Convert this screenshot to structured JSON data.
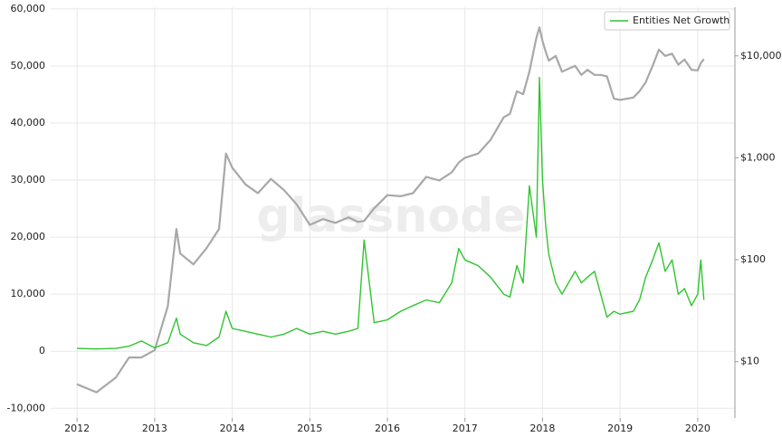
{
  "chart_data": {
    "type": "line",
    "watermark": "glassnode",
    "x": [
      2012.0,
      2012.25,
      2012.5,
      2012.67,
      2012.83,
      2013.0,
      2013.17,
      2013.28,
      2013.33,
      2013.5,
      2013.67,
      2013.83,
      2013.92,
      2014.0,
      2014.17,
      2014.33,
      2014.5,
      2014.67,
      2014.83,
      2015.0,
      2015.17,
      2015.33,
      2015.5,
      2015.62,
      2015.7,
      2015.83,
      2016.0,
      2016.17,
      2016.33,
      2016.5,
      2016.67,
      2016.83,
      2016.92,
      2017.0,
      2017.17,
      2017.33,
      2017.5,
      2017.58,
      2017.67,
      2017.75,
      2017.83,
      2017.92,
      2017.96,
      2018.0,
      2018.04,
      2018.08,
      2018.17,
      2018.25,
      2018.42,
      2018.5,
      2018.58,
      2018.67,
      2018.75,
      2018.83,
      2018.92,
      2019.0,
      2019.17,
      2019.25,
      2019.33,
      2019.42,
      2019.5,
      2019.58,
      2019.67,
      2019.75,
      2019.83,
      2019.92,
      2020.0,
      2020.04,
      2020.08
    ],
    "series": [
      {
        "color": "#a8a8a8",
        "axis": "y2",
        "values": [
          6,
          5,
          7,
          11,
          11,
          13,
          35,
          200,
          115,
          90,
          130,
          200,
          1100,
          800,
          550,
          450,
          620,
          480,
          350,
          220,
          250,
          230,
          260,
          235,
          240,
          320,
          430,
          420,
          450,
          650,
          600,
          720,
          900,
          1000,
          1100,
          1500,
          2500,
          2700,
          4500,
          4200,
          7000,
          15000,
          19000,
          14000,
          11000,
          9000,
          10000,
          7000,
          8000,
          6500,
          7300,
          6500,
          6500,
          6300,
          3800,
          3700,
          3900,
          4500,
          5500,
          8000,
          11500,
          10000,
          10500,
          8200,
          9200,
          7300,
          7200,
          8500,
          9300
        ]
      },
      {
        "name": "Entities Net Growth",
        "color": "#2fc42f",
        "values": [
          500,
          400,
          500,
          900,
          1800,
          600,
          1500,
          5800,
          3000,
          1500,
          1000,
          2500,
          7000,
          4000,
          3500,
          3000,
          2500,
          3000,
          4000,
          3000,
          3500,
          3000,
          3500,
          4000,
          19500,
          5000,
          5500,
          7000,
          8000,
          9000,
          8500,
          12000,
          18000,
          16000,
          15000,
          13000,
          10000,
          9500,
          15000,
          12000,
          29000,
          20000,
          48000,
          30000,
          22000,
          17000,
          12000,
          10000,
          14000,
          12000,
          13000,
          14000,
          10000,
          6000,
          7000,
          6500,
          7000,
          9000,
          13000,
          16000,
          19000,
          14000,
          16000,
          10000,
          11000,
          8000,
          10000,
          16000,
          9000
        ]
      }
    ],
    "xlim": [
      2011.66,
      2020.48
    ],
    "xticks": [
      2012,
      2013,
      2014,
      2015,
      2016,
      2017,
      2018,
      2019,
      2020
    ],
    "ylim": [
      -11700,
      60300
    ],
    "yticks": [
      {
        "value": -10000,
        "label": "-10,000"
      },
      0,
      {
        "value": 10000,
        "label": "10,000"
      },
      {
        "value": 20000,
        "label": "20,000"
      },
      {
        "value": 30000,
        "label": "30,000"
      },
      {
        "value": 40000,
        "label": "40,000"
      },
      {
        "value": 50000,
        "label": "50,000"
      },
      {
        "value": 60000,
        "label": "60,000"
      }
    ],
    "y2lim": [
      2.8,
      30000
    ],
    "y2scale": "log",
    "y2ticks": [
      {
        "value": 10,
        "label": "$10"
      },
      {
        "value": 100,
        "label": "$100"
      },
      {
        "value": 1000,
        "label": "$1,000"
      },
      {
        "value": 10000,
        "label": "$10,000"
      }
    ],
    "grid": true,
    "legend": "upper right"
  }
}
